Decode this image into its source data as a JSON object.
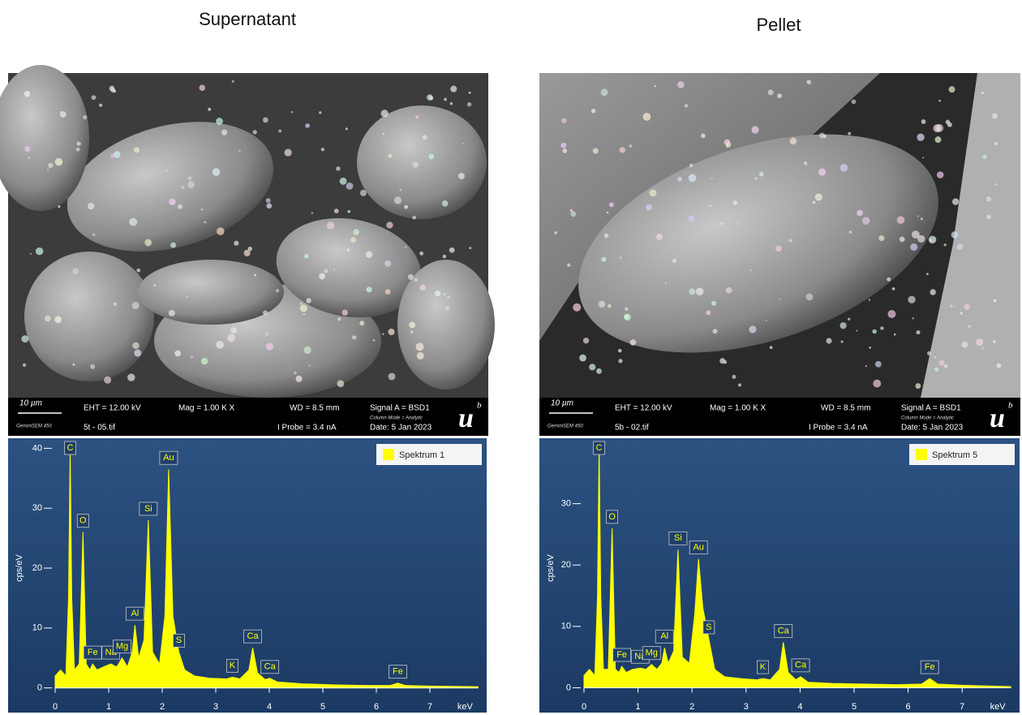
{
  "panels": [
    {
      "title": "Supernatant",
      "sem": {
        "scale": "10 µm",
        "instrument": "GeminiSEM 450",
        "eht": "EHT = 12.00 kV",
        "file": "5t - 05.tif",
        "mag": "Mag =   1.00 K X",
        "wd": "WD = 8.5 mm",
        "probe": "I Probe =   3.4 nA",
        "signal": "Signal A = BSD1",
        "mode": "Column Mode = Analytic",
        "date": "Date: 5 Jan 2023",
        "logo": "u",
        "logo_mark": "b"
      }
    },
    {
      "title": "Pellet",
      "sem": {
        "scale": "10 µm",
        "instrument": "GeminiSEM 450",
        "eht": "EHT = 12.00 kV",
        "file": "5b - 02.tif",
        "mag": "Mag =   1.00 K X",
        "wd": "WD = 8.5 mm",
        "probe": "I Probe =   3.4 nA",
        "signal": "Signal A = BSD1",
        "mode": "Column Mode = Analytic",
        "date": "Date: 5 Jan 2023",
        "logo": "u",
        "logo_mark": "b"
      }
    }
  ],
  "chart_data": [
    {
      "type": "area",
      "y_label": "cps/eV",
      "x_label": "keV",
      "x": [
        0,
        0.1,
        0.2,
        0.25,
        0.28,
        0.31,
        0.36,
        0.45,
        0.52,
        0.58,
        0.65,
        0.7,
        0.78,
        0.9,
        1.04,
        1.15,
        1.25,
        1.35,
        1.44,
        1.49,
        1.56,
        1.66,
        1.74,
        1.82,
        1.95,
        2.05,
        2.12,
        2.2,
        2.31,
        2.42,
        2.6,
        2.9,
        3.2,
        3.31,
        3.45,
        3.62,
        3.69,
        3.78,
        3.92,
        4.01,
        4.15,
        4.6,
        5.2,
        5.8,
        6.25,
        6.4,
        6.55,
        7.0,
        7.9
      ],
      "series": [
        {
          "name": "Spektrum 1",
          "color": "#ffff00",
          "values": [
            2,
            3,
            2,
            15,
            40,
            15,
            3,
            4,
            26,
            4,
            3,
            4,
            3,
            3.5,
            4,
            3.5,
            5,
            3.5,
            6,
            10.5,
            5,
            8,
            28,
            6,
            4,
            12,
            36.5,
            12,
            6,
            3,
            2,
            1.6,
            1.5,
            1.8,
            1.5,
            3,
            6.7,
            2.5,
            1.4,
            1.6,
            1,
            0.7,
            0.5,
            0.4,
            0.4,
            0.8,
            0.4,
            0.3,
            0.2
          ]
        }
      ],
      "xlim": [
        0,
        7.9
      ],
      "xticks": [
        0,
        1,
        2,
        3,
        4,
        5,
        6,
        7
      ],
      "ylim": [
        -1,
        41
      ],
      "yticks": [
        0,
        10,
        20,
        30,
        40
      ],
      "peaks": [
        {
          "label": "C",
          "x": 0.28,
          "y": 40
        },
        {
          "label": "O",
          "x": 0.52,
          "y": 26
        },
        {
          "label": "Fe",
          "x": 0.7,
          "y": 4
        },
        {
          "label": "Na",
          "x": 1.04,
          "y": 4
        },
        {
          "label": "Mg",
          "x": 1.25,
          "y": 5
        },
        {
          "label": "Al",
          "x": 1.49,
          "y": 10.5
        },
        {
          "label": "Si",
          "x": 1.74,
          "y": 28
        },
        {
          "label": "Au",
          "x": 2.12,
          "y": 36.5
        },
        {
          "label": "S",
          "x": 2.31,
          "y": 6
        },
        {
          "label": "K",
          "x": 3.31,
          "y": 1.8
        },
        {
          "label": "Ca",
          "x": 3.69,
          "y": 6.7
        },
        {
          "label": "Ca",
          "x": 4.01,
          "y": 1.6
        },
        {
          "label": "Fe",
          "x": 6.4,
          "y": 0.8
        }
      ]
    },
    {
      "type": "area",
      "y_label": "cps/eV",
      "x_label": "keV",
      "x": [
        0,
        0.1,
        0.2,
        0.25,
        0.28,
        0.31,
        0.36,
        0.45,
        0.52,
        0.58,
        0.65,
        0.7,
        0.78,
        0.9,
        1.04,
        1.15,
        1.25,
        1.35,
        1.44,
        1.49,
        1.56,
        1.66,
        1.74,
        1.82,
        1.95,
        2.05,
        2.12,
        2.2,
        2.31,
        2.42,
        2.6,
        2.9,
        3.2,
        3.31,
        3.45,
        3.62,
        3.69,
        3.78,
        3.92,
        4.01,
        4.15,
        4.6,
        5.2,
        5.8,
        6.25,
        6.4,
        6.55,
        7.0,
        7.9
      ],
      "series": [
        {
          "name": "Spektrum 5",
          "color": "#ffff00",
          "values": [
            2,
            3,
            2,
            15,
            40,
            15,
            3,
            3,
            26,
            3,
            2.5,
            3.5,
            2.5,
            3,
            3.2,
            3,
            3.8,
            3,
            4,
            6.5,
            4,
            6,
            22.5,
            5,
            4,
            12,
            21,
            13,
            8,
            3,
            1.8,
            1.5,
            1.3,
            1.5,
            1.3,
            3,
            7.4,
            2.5,
            1.3,
            1.8,
            0.9,
            0.7,
            0.6,
            0.5,
            0.6,
            1.5,
            0.6,
            0.4,
            0.2
          ]
        }
      ],
      "xlim": [
        0,
        7.9
      ],
      "xticks": [
        0,
        1,
        2,
        3,
        4,
        5,
        6,
        7
      ],
      "ylim": [
        -1,
        40
      ],
      "yticks": [
        0,
        10,
        20,
        30
      ],
      "peaks": [
        {
          "label": "C",
          "x": 0.28,
          "y": 40
        },
        {
          "label": "O",
          "x": 0.52,
          "y": 26
        },
        {
          "label": "Fe",
          "x": 0.7,
          "y": 3.5
        },
        {
          "label": "Na",
          "x": 1.04,
          "y": 3.2
        },
        {
          "label": "Mg",
          "x": 1.25,
          "y": 3.8
        },
        {
          "label": "Al",
          "x": 1.49,
          "y": 6.5
        },
        {
          "label": "Si",
          "x": 1.74,
          "y": 22.5
        },
        {
          "label": "Au",
          "x": 2.12,
          "y": 21
        },
        {
          "label": "S",
          "x": 2.31,
          "y": 8
        },
        {
          "label": "K",
          "x": 3.31,
          "y": 1.5
        },
        {
          "label": "Ca",
          "x": 3.69,
          "y": 7.4
        },
        {
          "label": "Ca",
          "x": 4.01,
          "y": 1.8
        },
        {
          "label": "Fe",
          "x": 6.4,
          "y": 1.5
        }
      ]
    }
  ]
}
